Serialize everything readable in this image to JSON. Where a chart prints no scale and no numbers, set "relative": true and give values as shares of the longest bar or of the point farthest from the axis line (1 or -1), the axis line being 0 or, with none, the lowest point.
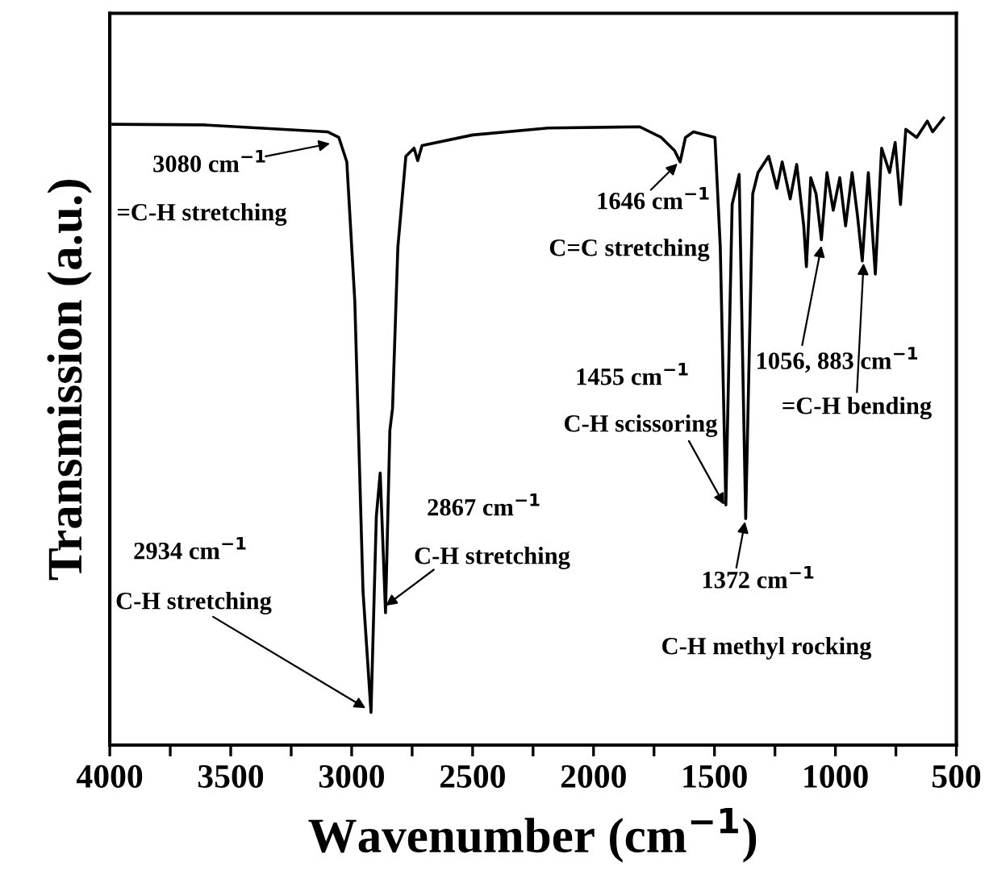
{
  "chart_data": {
    "type": "line",
    "relative": true,
    "xlabel": "Wavenumber (cm$^{−1}$)",
    "ylabel": "Transmission (a.u.)",
    "xlim": [
      4000,
      500
    ],
    "xticks": [
      4000,
      {
        "value": 3750,
        "label": null
      },
      3500,
      {
        "value": 3250,
        "label": null
      },
      3000,
      {
        "value": 2750,
        "label": null
      },
      2500,
      {
        "value": 2250,
        "label": null
      },
      2000,
      {
        "value": 1750,
        "label": null
      },
      1500,
      {
        "value": 1250,
        "label": null
      },
      1000,
      {
        "value": 750,
        "label": null
      },
      500
    ],
    "grid": false,
    "legend": false,
    "marker": "none",
    "line_style": "solid",
    "series": [
      {
        "color": "#000000",
        "x": [
          3987,
          3609,
          3100,
          3053,
          3020,
          2987,
          2953,
          2920,
          2898,
          2882,
          2860,
          2842,
          2831,
          2809,
          2776,
          2742,
          2727,
          2709,
          2500,
          2187,
          1809,
          1720,
          1665,
          1642,
          1620,
          1587,
          1498,
          1476,
          1453,
          1427,
          1398,
          1371,
          1342,
          1320,
          1276,
          1242,
          1220,
          1187,
          1160,
          1131,
          1120,
          1102,
          1080,
          1058,
          1035,
          1009,
          982,
          958,
          931,
          909,
          889,
          864,
          835,
          809,
          776,
          753,
          731,
          709,
          664,
          620,
          598,
          553
        ],
        "values": [
          0.99,
          0.989,
          0.978,
          0.969,
          0.93,
          0.708,
          0.245,
          0.052,
          0.365,
          0.434,
          0.211,
          0.502,
          0.537,
          0.794,
          0.939,
          0.952,
          0.932,
          0.956,
          0.973,
          0.984,
          0.986,
          0.969,
          0.948,
          0.93,
          0.969,
          0.978,
          0.969,
          0.794,
          0.383,
          0.862,
          0.91,
          0.361,
          0.879,
          0.913,
          0.939,
          0.888,
          0.93,
          0.871,
          0.926,
          0.828,
          0.763,
          0.905,
          0.879,
          0.806,
          0.913,
          0.853,
          0.905,
          0.828,
          0.913,
          0.845,
          0.772,
          0.913,
          0.751,
          0.952,
          0.913,
          0.961,
          0.862,
          0.982,
          0.969,
          0.995,
          0.978,
          1.0
        ]
      }
    ],
    "annotations": [
      {
        "text": "3080 cm$^{−1}$",
        "x": 3080,
        "y": 0.96
      },
      "=C-H stretching",
      {
        "text": "1646 cm$^{−1}$",
        "x": 1646,
        "y": 0.93
      },
      "C=C stretching",
      "1455 cm$^{−1}$",
      {
        "text": "C-H scissoring",
        "x": 1455,
        "y": 0.38
      },
      "2867 cm$^{−1}$",
      {
        "text": "C-H stretching",
        "x": 2867,
        "y": 0.22
      },
      "2934 cm$^{−1}$",
      {
        "text": "C-H stretching",
        "x": 2934,
        "y": 0.057
      },
      {
        "text": "1372 cm$^{−1}$",
        "x": 1372,
        "y": 0.36
      },
      "C-H methyl rocking",
      {
        "text": "1056, 883 cm$^{−1}$",
        "x": 1056,
        "y": 0.8
      },
      {
        "text": "=C-H bending",
        "x": 883,
        "y": 0.772
      }
    ]
  }
}
